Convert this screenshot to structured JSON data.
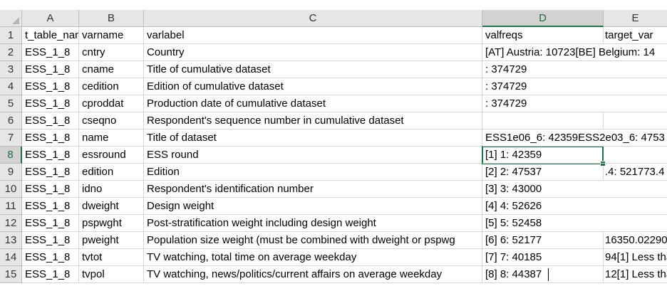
{
  "columns": [
    "A",
    "B",
    "C",
    "D",
    "E"
  ],
  "active_column": "D",
  "active_row": "8",
  "rows": [
    {
      "n": "1",
      "a": "t_table_name",
      "b": "varname",
      "c": "varlabel",
      "d": "valfreqs",
      "e": "target_var"
    },
    {
      "n": "2",
      "a": "ESS_1_8",
      "b": "cntry",
      "c": "Country",
      "d": "[AT] Austria: 10723[BE] Belgium: 14",
      "e": ""
    },
    {
      "n": "3",
      "a": "ESS_1_8",
      "b": "cname",
      "c": "Title of cumulative dataset",
      "d": ": 374729",
      "e": ""
    },
    {
      "n": "4",
      "a": "ESS_1_8",
      "b": "cedition",
      "c": "Edition of cumulative dataset",
      "d": ": 374729",
      "e": ""
    },
    {
      "n": "5",
      "a": "ESS_1_8",
      "b": "cproddat",
      "c": "Production date of cumulative dataset",
      "d": ": 374729",
      "e": ""
    },
    {
      "n": "6",
      "a": "ESS_1_8",
      "b": "cseqno",
      "c": "Respondent's sequence number in cumulative dataset",
      "d": "",
      "e": ""
    },
    {
      "n": "7",
      "a": "ESS_1_8",
      "b": "name",
      "c": "Title of dataset",
      "d": "ESS1e06_6: 42359ESS2e03_6: 4753",
      "e": ""
    },
    {
      "n": "8",
      "a": "ESS_1_8",
      "b": "essround",
      "c": "ESS round",
      "d": "[1] 1: 42359",
      "e": ""
    },
    {
      "n": "9",
      "a": "ESS_1_8",
      "b": "edition",
      "c": "Edition",
      "d": "[2] 2: 47537",
      "e": ".4: 521773.4"
    },
    {
      "n": "10",
      "a": "ESS_1_8",
      "b": "idno",
      "c": "Respondent's identification number",
      "d": "[3] 3: 43000",
      "e": ""
    },
    {
      "n": "11",
      "a": "ESS_1_8",
      "b": "dweight",
      "c": "Design weight",
      "d": "[4] 4: 52626",
      "e": ""
    },
    {
      "n": "12",
      "a": "ESS_1_8",
      "b": "pspwght",
      "c": "Post-stratification weight including design weight",
      "d": "[5] 5: 52458",
      "e": ""
    },
    {
      "n": "13",
      "a": "ESS_1_8",
      "b": "pweight",
      "c": "Population size weight (must be combined with dweight or pspwg",
      "d": "[6] 6: 52177",
      "e": "16350.02290"
    },
    {
      "n": "14",
      "a": "ESS_1_8",
      "b": "tvtot",
      "c": "TV watching, total time on average weekday",
      "d": "[7] 7: 40185",
      "e": "94[1] Less tha"
    },
    {
      "n": "15",
      "a": "ESS_1_8",
      "b": "tvpol",
      "c": "TV watching, news/politics/current affairs on average weekday",
      "d": "[8] 8: 44387",
      "e": "12[1] Less tha"
    }
  ],
  "colors": {
    "accent": "#217346",
    "header_bg": "#e6e6e6",
    "grid": "#d4d4d4"
  }
}
